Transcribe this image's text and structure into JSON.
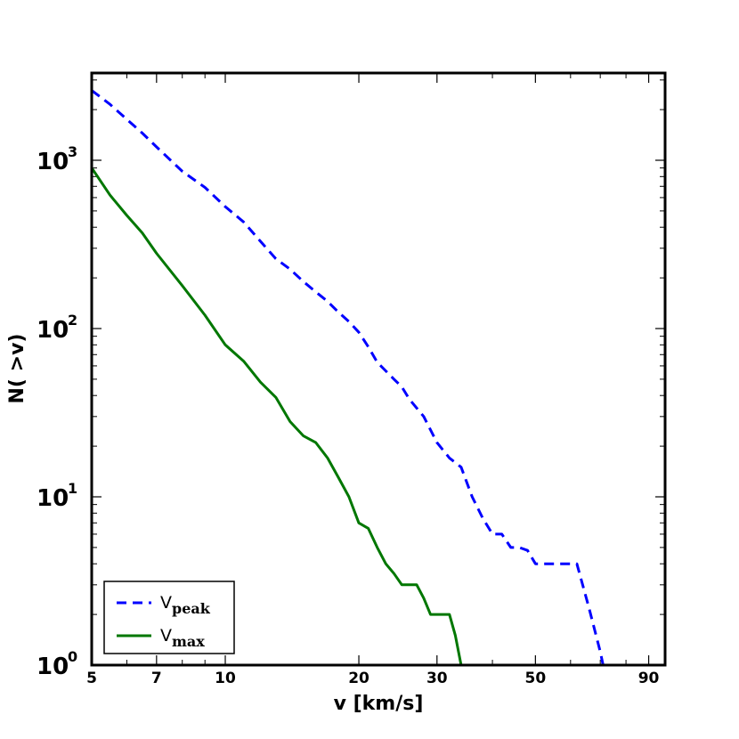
{
  "chart_data": {
    "type": "line",
    "xlabel": "v [km/s]",
    "ylabel": "N( >v)",
    "xscale": "log",
    "yscale": "log",
    "xlim": [
      5,
      98
    ],
    "ylim": [
      1,
      3300
    ],
    "x_ticks": [
      {
        "value": 5,
        "label": "5"
      },
      {
        "value": 7,
        "label": "7"
      },
      {
        "value": 10,
        "label": "10"
      },
      {
        "value": 20,
        "label": "20"
      },
      {
        "value": 30,
        "label": "30"
      },
      {
        "value": 50,
        "label": "50"
      },
      {
        "value": 90,
        "label": "90"
      }
    ],
    "y_ticks": [
      {
        "value": 1,
        "base": "10",
        "exp": "0"
      },
      {
        "value": 10,
        "base": "10",
        "exp": "1"
      },
      {
        "value": 100,
        "base": "10",
        "exp": "2"
      },
      {
        "value": 1000,
        "base": "10",
        "exp": "3"
      }
    ],
    "grid": false,
    "legend_position": "bottom-left",
    "series": [
      {
        "name": "V_peak",
        "label_main": "V",
        "label_sub": "peak",
        "color": "#0000ff",
        "linestyle": "dashed",
        "x": [
          5,
          5.5,
          6,
          6.5,
          7,
          8,
          9,
          10,
          11,
          12,
          13,
          14,
          15,
          16,
          17,
          18,
          19,
          20,
          21,
          22,
          24,
          25,
          26,
          28,
          30,
          32,
          34,
          36,
          38,
          40,
          42,
          44,
          46,
          48,
          50,
          53,
          57,
          62,
          66,
          70,
          74
        ],
        "y": [
          2600,
          2150,
          1750,
          1450,
          1200,
          860,
          690,
          530,
          430,
          330,
          260,
          225,
          190,
          165,
          145,
          125,
          110,
          95,
          78,
          63,
          50,
          45,
          38,
          30,
          21,
          17,
          15,
          10,
          7.5,
          6,
          6,
          5,
          5,
          4.8,
          4,
          4,
          4,
          4,
          2.2,
          1.2,
          0.6
        ]
      },
      {
        "name": "V_max",
        "label_main": "V",
        "label_sub": "max",
        "color": "#007700",
        "linestyle": "solid",
        "x": [
          5,
          5.5,
          6,
          6.5,
          7,
          8,
          9,
          10,
          11,
          12,
          13,
          14,
          15,
          16,
          17,
          18,
          19,
          20,
          21,
          22,
          23,
          24,
          25,
          26,
          27,
          28,
          29,
          30,
          31,
          32,
          33,
          34,
          35
        ],
        "y": [
          900,
          620,
          470,
          370,
          280,
          180,
          120,
          80,
          64,
          48,
          39,
          28,
          23,
          21,
          17,
          13,
          10,
          7,
          6.5,
          5,
          4,
          3.5,
          3,
          3,
          3,
          2.5,
          2,
          2,
          2,
          2,
          1.5,
          1,
          0.8
        ]
      }
    ]
  }
}
